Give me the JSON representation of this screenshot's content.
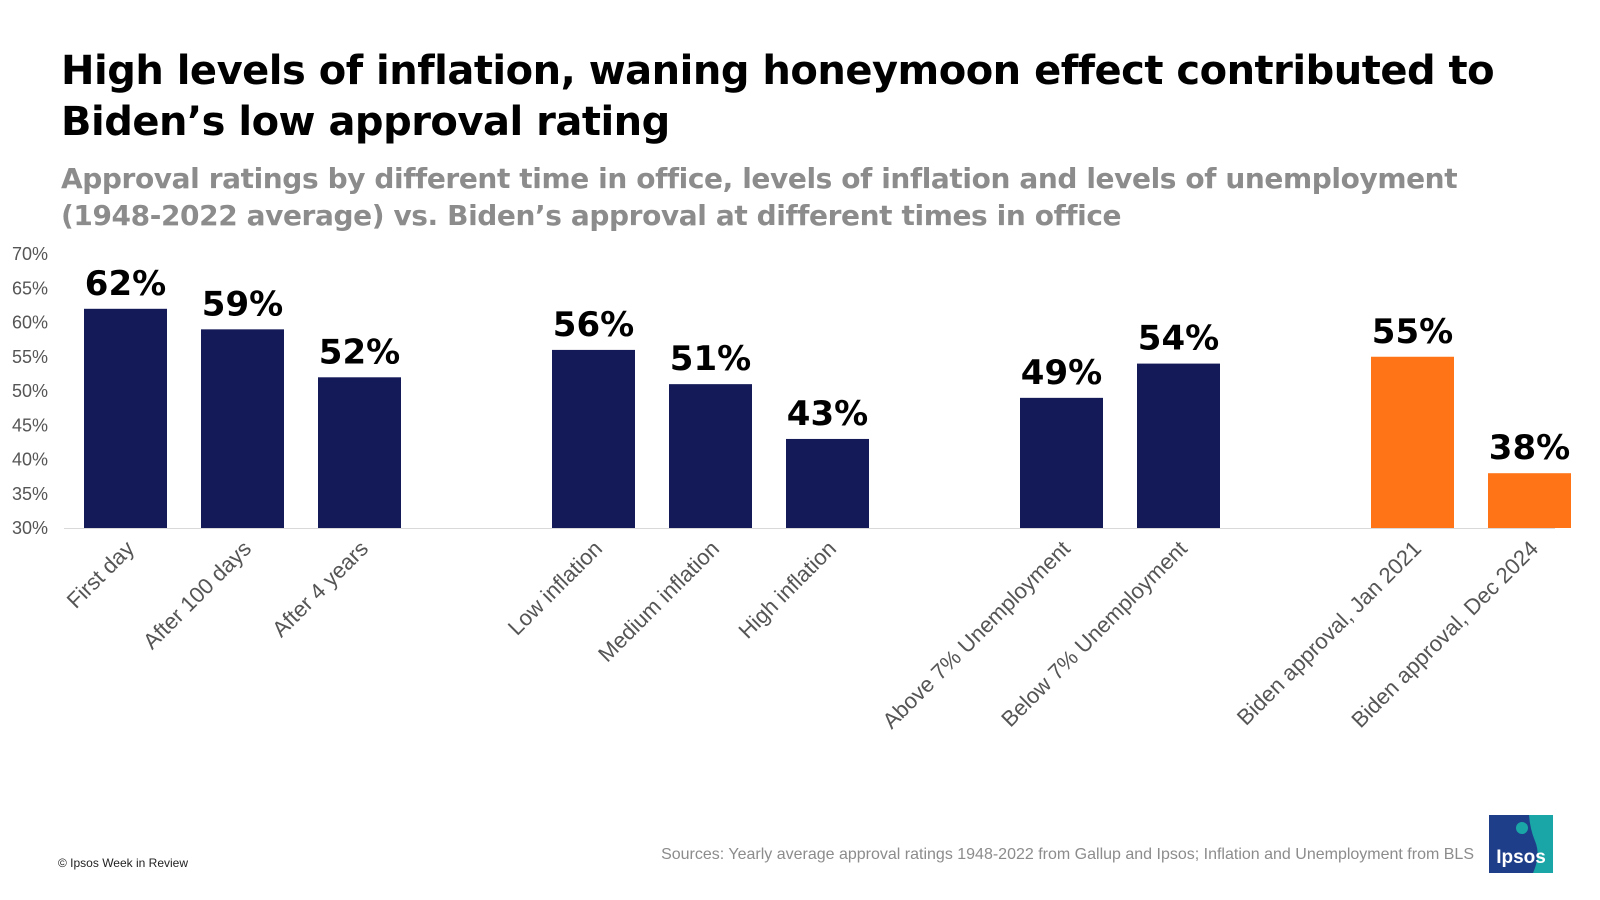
{
  "title": "High levels of inflation, waning honeymoon effect contributed to Biden’s low approval rating",
  "subtitle": "Approval ratings by different time in office, levels of inflation and levels of unemployment (1948-2022 average) vs. Biden’s approval at different times in office",
  "chart_data": {
    "type": "bar",
    "title": "High levels of inflation, waning honeymoon effect contributed to Biden’s low approval rating",
    "subtitle": "Approval ratings by different time in office, levels of inflation and levels of unemployment (1948-2022 average) vs. Biden’s approval at different times in office",
    "xlabel": "",
    "ylabel": "",
    "ylim": [
      30,
      70
    ],
    "yticks": [
      30,
      35,
      40,
      45,
      50,
      55,
      60,
      65,
      70
    ],
    "ytick_labels": [
      "30%",
      "35%",
      "40%",
      "45%",
      "50%",
      "55%",
      "60%",
      "65%",
      "70%"
    ],
    "grid": false,
    "legend": "none",
    "groups": [
      {
        "color": "#141a57",
        "bars": [
          {
            "category": "First day",
            "value": 62,
            "label": "62%"
          },
          {
            "category": "After 100 days",
            "value": 59,
            "label": "59%"
          },
          {
            "category": "After 4 years",
            "value": 52,
            "label": "52%"
          }
        ]
      },
      {
        "color": "#141a57",
        "bars": [
          {
            "category": "Low inflation",
            "value": 56,
            "label": "56%"
          },
          {
            "category": "Medium inflation",
            "value": 51,
            "label": "51%"
          },
          {
            "category": "High inflation",
            "value": 43,
            "label": "43%"
          }
        ]
      },
      {
        "color": "#141a57",
        "bars": [
          {
            "category": "Above 7% Unemployment",
            "value": 49,
            "label": "49%"
          },
          {
            "category": "Below 7% Unemployment",
            "value": 54,
            "label": "54%"
          }
        ]
      },
      {
        "color": "#ff7416",
        "bars": [
          {
            "category": "Biden approval, Jan 2021",
            "value": 55,
            "label": "55%"
          },
          {
            "category": "Biden approval, Dec 2024",
            "value": 38,
            "label": "38%"
          }
        ]
      }
    ]
  },
  "footer": {
    "copyright": "© Ipsos Week in Review",
    "sources": "Sources:  Yearly average approval ratings 1948-2022 from Gallup and Ipsos; Inflation and Unemployment from BLS"
  },
  "logo": {
    "text": "Ipsos",
    "icon": "ipsos-logo-icon",
    "colors": {
      "navy": "#1f3e8a",
      "teal": "#1aa6a6"
    }
  },
  "colors": {
    "navy_bar": "#141a57",
    "orange_bar": "#ff7416",
    "axis_text": "#555555",
    "gridline": "#d9d9d9"
  }
}
